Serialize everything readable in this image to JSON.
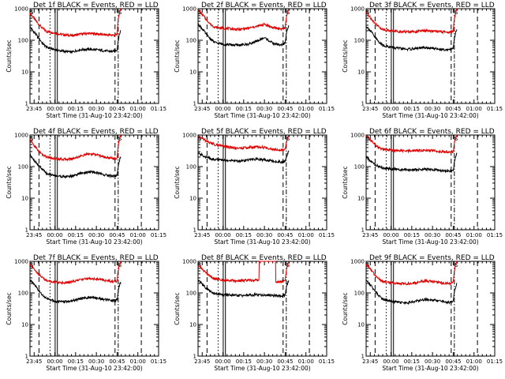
{
  "figure": {
    "background": "#ffffff",
    "colors": {
      "events": "#000000",
      "lld": "#e00000",
      "axes": "#000000"
    },
    "xlabel": "Start Time (31-Aug-10 23:42:00)",
    "ylabel": "Counts/sec",
    "xtick_labels": [
      "23:45",
      "00:00",
      "00:15",
      "00:30",
      "00:45",
      "01:00",
      "01:15"
    ],
    "ytick_labels": [
      "1",
      "10",
      "100",
      "1000"
    ],
    "saa_labels": [
      "S",
      "S"
    ]
  },
  "chart_data": [
    {
      "type": "line",
      "title": "Det 1f BLACK = Events, RED = LLD",
      "xlabel": "Start Time (31-Aug-10 23:42:00)",
      "ylabel": "Counts/sec",
      "ylim": [
        1,
        1000
      ],
      "log_y": true,
      "x_range_minutes": [
        0,
        93
      ],
      "x_tick_minutes": [
        3,
        18,
        33,
        48,
        63,
        78,
        93
      ],
      "legend": "none",
      "grid": false,
      "series": [
        {
          "x": [
            0,
            3,
            6,
            9,
            12,
            18,
            24,
            30,
            36,
            42,
            48,
            54,
            60,
            63,
            65.5
          ],
          "values": [
            700,
            480,
            330,
            240,
            190,
            170,
            150,
            140,
            155,
            165,
            160,
            150,
            145,
            150,
            1000
          ]
        },
        {
          "x": [
            0,
            3,
            6,
            9,
            12,
            18,
            24,
            30,
            36,
            42,
            48,
            54,
            60,
            63,
            65.5
          ],
          "values": [
            260,
            180,
            120,
            80,
            60,
            50,
            45,
            42,
            50,
            52,
            50,
            46,
            44,
            50,
            200
          ]
        }
      ]
    },
    {
      "type": "line",
      "title": "Det 2f BLACK = Events, RED = LLD",
      "xlabel": "Start Time (31-Aug-10 23:42:00)",
      "ylabel": "Counts/sec",
      "ylim": [
        1,
        1000
      ],
      "log_y": true,
      "x_range_minutes": [
        0,
        93
      ],
      "x_tick_minutes": [
        3,
        18,
        33,
        48,
        63,
        78,
        93
      ],
      "legend": "none",
      "grid": false,
      "series": [
        {
          "x": [
            0,
            3,
            6,
            9,
            12,
            18,
            24,
            30,
            36,
            42,
            48,
            54,
            60,
            63,
            65.5
          ],
          "values": [
            900,
            650,
            450,
            320,
            260,
            240,
            230,
            220,
            240,
            270,
            320,
            250,
            230,
            240,
            1000
          ]
        },
        {
          "x": [
            0,
            3,
            6,
            9,
            12,
            18,
            24,
            30,
            36,
            42,
            48,
            54,
            60,
            63,
            65.5
          ],
          "values": [
            320,
            230,
            150,
            110,
            85,
            75,
            72,
            70,
            75,
            90,
            120,
            80,
            70,
            80,
            300
          ]
        }
      ]
    },
    {
      "type": "line",
      "title": "Det 3f BLACK = Events, RED = LLD",
      "xlabel": "Start Time (31-Aug-10 23:42:00)",
      "ylabel": "Counts/sec",
      "ylim": [
        1,
        1000
      ],
      "log_y": true,
      "x_range_minutes": [
        0,
        93
      ],
      "x_tick_minutes": [
        3,
        18,
        33,
        48,
        63,
        78,
        93
      ],
      "legend": "none",
      "grid": false,
      "series": [
        {
          "x": [
            0,
            3,
            6,
            9,
            12,
            18,
            24,
            30,
            36,
            42,
            48,
            54,
            60,
            63,
            65.5
          ],
          "values": [
            750,
            520,
            360,
            270,
            220,
            200,
            190,
            185,
            190,
            200,
            195,
            185,
            180,
            190,
            1000
          ]
        },
        {
          "x": [
            0,
            3,
            6,
            9,
            12,
            18,
            24,
            30,
            36,
            42,
            48,
            54,
            60,
            63,
            65.5
          ],
          "values": [
            280,
            200,
            130,
            90,
            70,
            60,
            55,
            52,
            55,
            58,
            56,
            52,
            50,
            55,
            220
          ]
        }
      ]
    },
    {
      "type": "line",
      "title": "Det 4f BLACK = Events, RED = LLD",
      "xlabel": "Start Time (31-Aug-10 23:42:00)",
      "ylabel": "Counts/sec",
      "ylim": [
        1,
        1000
      ],
      "log_y": true,
      "x_range_minutes": [
        0,
        93
      ],
      "x_tick_minutes": [
        3,
        18,
        33,
        48,
        63,
        78,
        93
      ],
      "legend": "none",
      "grid": false,
      "series": [
        {
          "x": [
            0,
            3,
            6,
            9,
            12,
            18,
            24,
            30,
            36,
            42,
            48,
            54,
            60,
            63,
            65.5
          ],
          "values": [
            700,
            460,
            320,
            240,
            200,
            180,
            170,
            175,
            210,
            250,
            240,
            200,
            180,
            185,
            1000
          ]
        },
        {
          "x": [
            0,
            3,
            6,
            9,
            12,
            18,
            24,
            30,
            36,
            42,
            48,
            54,
            60,
            63,
            65.5
          ],
          "values": [
            240,
            160,
            110,
            80,
            60,
            52,
            48,
            50,
            60,
            68,
            65,
            55,
            50,
            52,
            200
          ]
        }
      ]
    },
    {
      "type": "line",
      "title": "Det 5f BLACK = Events, RED = LLD",
      "xlabel": "Start Time (31-Aug-10 23:42:00)",
      "ylabel": "Counts/sec",
      "ylim": [
        1,
        1000
      ],
      "log_y": true,
      "x_range_minutes": [
        0,
        93
      ],
      "x_tick_minutes": [
        3,
        18,
        33,
        48,
        63,
        78,
        93
      ],
      "legend": "none",
      "grid": false,
      "series": [
        {
          "x": [
            0,
            3,
            6,
            9,
            12,
            18,
            24,
            30,
            36,
            42,
            48,
            54,
            60,
            63,
            65.5
          ],
          "values": [
            900,
            780,
            640,
            560,
            500,
            440,
            400,
            380,
            400,
            420,
            400,
            360,
            340,
            350,
            1000
          ]
        },
        {
          "x": [
            0,
            3,
            6,
            9,
            12,
            18,
            24,
            30,
            36,
            42,
            48,
            54,
            60,
            63,
            65.5
          ],
          "values": [
            260,
            230,
            200,
            180,
            170,
            160,
            155,
            150,
            160,
            170,
            165,
            150,
            140,
            150,
            300
          ]
        }
      ]
    },
    {
      "type": "line",
      "title": "Det 6f BLACK = Events, RED = LLD",
      "xlabel": "Start Time (31-Aug-10 23:42:00)",
      "ylabel": "Counts/sec",
      "ylim": [
        1,
        1000
      ],
      "log_y": true,
      "x_range_minutes": [
        0,
        93
      ],
      "x_tick_minutes": [
        3,
        18,
        33,
        48,
        63,
        78,
        93
      ],
      "legend": "none",
      "grid": false,
      "series": [
        {
          "x": [
            0,
            3,
            6,
            9,
            12,
            18,
            24,
            30,
            36,
            42,
            48,
            54,
            60,
            63,
            65.5
          ],
          "values": [
            950,
            700,
            520,
            400,
            350,
            330,
            320,
            310,
            320,
            330,
            320,
            300,
            290,
            300,
            1000
          ]
        },
        {
          "x": [
            0,
            3,
            6,
            9,
            12,
            18,
            24,
            30,
            36,
            42,
            48,
            54,
            60,
            63,
            65.5
          ],
          "values": [
            200,
            150,
            120,
            100,
            90,
            85,
            80,
            78,
            80,
            82,
            80,
            75,
            72,
            75,
            250
          ]
        }
      ]
    },
    {
      "type": "line",
      "title": "Det 7f BLACK = Events, RED = LLD",
      "xlabel": "Start Time (31-Aug-10 23:42:00)",
      "ylabel": "Counts/sec",
      "ylim": [
        1,
        1000
      ],
      "log_y": true,
      "x_range_minutes": [
        0,
        93
      ],
      "x_tick_minutes": [
        3,
        18,
        33,
        48,
        63,
        78,
        93
      ],
      "legend": "none",
      "grid": false,
      "series": [
        {
          "x": [
            0,
            3,
            6,
            9,
            12,
            18,
            24,
            30,
            36,
            42,
            48,
            54,
            60,
            63,
            65.5
          ],
          "values": [
            800,
            560,
            400,
            300,
            250,
            220,
            210,
            220,
            260,
            290,
            280,
            250,
            230,
            240,
            1000
          ]
        },
        {
          "x": [
            0,
            3,
            6,
            9,
            12,
            18,
            24,
            30,
            36,
            42,
            48,
            54,
            60,
            63,
            65.5
          ],
          "values": [
            260,
            180,
            120,
            85,
            65,
            55,
            52,
            55,
            65,
            72,
            70,
            62,
            56,
            60,
            220
          ]
        }
      ]
    },
    {
      "type": "line",
      "title": "Det 8f BLACK = Events, RED = LLD",
      "xlabel": "Start Time (31-Aug-10 23:42:00)",
      "ylabel": "Counts/sec",
      "ylim": [
        1,
        1000
      ],
      "log_y": true,
      "x_range_minutes": [
        0,
        93
      ],
      "x_tick_minutes": [
        3,
        18,
        33,
        48,
        63,
        78,
        93
      ],
      "legend": "none",
      "grid": false,
      "series": [
        {
          "x": [
            0,
            3,
            6,
            9,
            12,
            18,
            24,
            30,
            36,
            42,
            44,
            44.2,
            48,
            54,
            56,
            56.2,
            60,
            63,
            65.5
          ],
          "values": [
            750,
            560,
            420,
            330,
            280,
            260,
            250,
            240,
            250,
            255,
            255,
            1000,
            1000,
            1000,
            1000,
            220,
            230,
            240,
            1000
          ]
        },
        {
          "x": [
            0,
            3,
            6,
            9,
            12,
            18,
            24,
            30,
            36,
            42,
            48,
            54,
            60,
            63,
            65.5
          ],
          "values": [
            260,
            190,
            140,
            110,
            95,
            88,
            85,
            82,
            85,
            88,
            86,
            82,
            80,
            85,
            250
          ]
        }
      ]
    },
    {
      "type": "line",
      "title": "Det 9f BLACK = Events, RED = LLD",
      "xlabel": "Start Time (31-Aug-10 23:42:00)",
      "ylabel": "Counts/sec",
      "ylim": [
        1,
        1000
      ],
      "log_y": true,
      "x_range_minutes": [
        0,
        93
      ],
      "x_tick_minutes": [
        3,
        18,
        33,
        48,
        63,
        78,
        93
      ],
      "legend": "none",
      "grid": false,
      "series": [
        {
          "x": [
            0,
            3,
            6,
            9,
            12,
            18,
            24,
            30,
            36,
            42,
            48,
            54,
            60,
            63,
            65.5
          ],
          "values": [
            800,
            560,
            380,
            280,
            230,
            210,
            200,
            195,
            210,
            240,
            230,
            210,
            200,
            210,
            1000
          ]
        },
        {
          "x": [
            0,
            3,
            6,
            9,
            12,
            18,
            24,
            30,
            36,
            42,
            48,
            54,
            60,
            63,
            65.5
          ],
          "values": [
            260,
            180,
            120,
            85,
            65,
            55,
            50,
            48,
            55,
            62,
            60,
            54,
            50,
            52,
            200
          ]
        }
      ]
    }
  ]
}
